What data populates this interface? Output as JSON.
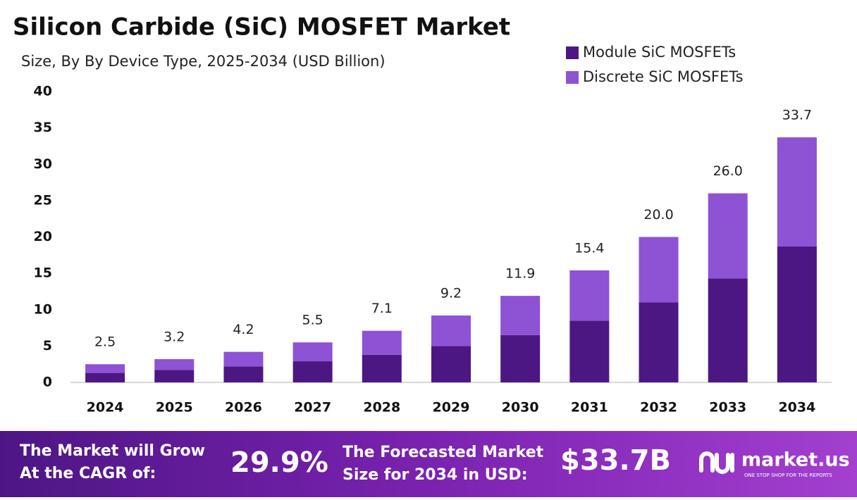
{
  "chart_data": {
    "type": "bar",
    "stacked": true,
    "title": "Silicon Carbide (SiC) MOSFET Market",
    "subtitle": "Size, By By Device Type, 2025-2034 (USD Billion)",
    "categories": [
      "2024",
      "2025",
      "2026",
      "2027",
      "2028",
      "2029",
      "2030",
      "2031",
      "2032",
      "2033",
      "2034"
    ],
    "series": [
      {
        "name": "Module SiC MOSFETs",
        "color": "#4c1783",
        "values": [
          1.3,
          1.7,
          2.2,
          2.9,
          3.8,
          5.0,
          6.5,
          8.5,
          11.0,
          14.3,
          18.7
        ]
      },
      {
        "name": "Discrete SiC MOSFETs",
        "color": "#8e52d4",
        "values": [
          1.2,
          1.5,
          2.0,
          2.6,
          3.3,
          4.2,
          5.4,
          6.9,
          9.0,
          11.7,
          15.0
        ]
      }
    ],
    "totals": [
      2.5,
      3.2,
      4.2,
      5.5,
      7.1,
      9.2,
      11.9,
      15.4,
      20.0,
      26.0,
      33.7
    ],
    "total_labels": [
      "2.5",
      "3.2",
      "4.2",
      "5.5",
      "7.1",
      "9.2",
      "11.9",
      "15.4",
      "20.0",
      "26.0",
      "33.7"
    ],
    "ylim": [
      0,
      40
    ],
    "yticks": [
      0,
      5,
      10,
      15,
      20,
      25,
      30,
      35,
      40
    ],
    "grid": false,
    "legend": "top-right"
  },
  "footer": {
    "cagr_text": [
      "The Market will Grow",
      "At the CAGR of:"
    ],
    "cagr_value": "29.9%",
    "forecast_text": [
      "The Forecasted Market",
      "Size for 2034 in USD:"
    ],
    "forecast_value": "$33.7B",
    "brand": "market.us",
    "tagline": "ONE STOP SHOP FOR THE REPORTS"
  }
}
